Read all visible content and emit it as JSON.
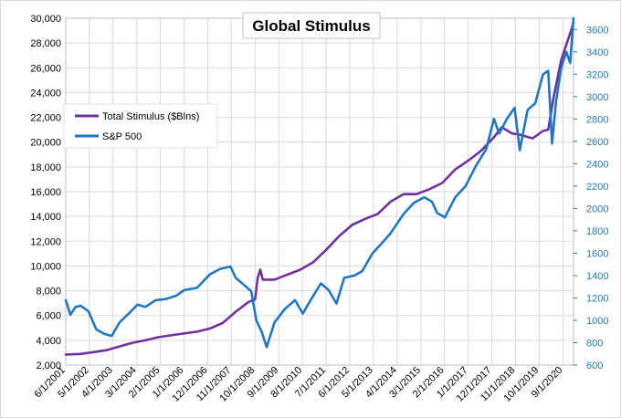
{
  "chart_data": {
    "type": "line",
    "title": "Global Stimulus",
    "xlabel": "",
    "ylabel": "",
    "x_tick_labels": [
      "6/1/2001",
      "5/1/2002",
      "4/1/2003",
      "3/1/2004",
      "2/1/2005",
      "1/1/2006",
      "12/1/2006",
      "11/1/2007",
      "10/1/2008",
      "9/1/2009",
      "8/1/2010",
      "7/1/2011",
      "6/1/2012",
      "5/1/2013",
      "4/1/2014",
      "3/1/2015",
      "2/1/2016",
      "1/1/2017",
      "12/1/2017",
      "11/1/2018",
      "10/1/2019",
      "9/1/2020"
    ],
    "x_tick_years": [
      2001.42,
      2002.33,
      2003.25,
      2004.17,
      2005.08,
      2006.0,
      2006.92,
      2007.83,
      2008.75,
      2009.67,
      2010.58,
      2011.5,
      2012.42,
      2013.33,
      2014.25,
      2015.17,
      2016.08,
      2017.0,
      2017.92,
      2018.83,
      2019.75,
      2020.67
    ],
    "x_range": [
      2001.42,
      2021.08
    ],
    "y_left": {
      "range": [
        2000,
        30000
      ],
      "ticks": [
        2000,
        4000,
        6000,
        8000,
        10000,
        12000,
        14000,
        16000,
        18000,
        20000,
        22000,
        24000,
        26000,
        28000,
        30000
      ],
      "tick_labels": [
        "2,000",
        "4,000",
        "6,000",
        "8,000",
        "10,000",
        "12,000",
        "14,000",
        "16,000",
        "18,000",
        "20,000",
        "22,000",
        "24,000",
        "26,000",
        "28,000",
        "30,000"
      ]
    },
    "y_right": {
      "range": [
        600,
        3700
      ],
      "ticks": [
        600,
        800,
        1000,
        1200,
        1400,
        1600,
        1800,
        2000,
        2200,
        2400,
        2600,
        2800,
        3000,
        3200,
        3400,
        3600
      ],
      "tick_labels": [
        "600",
        "800",
        "1000",
        "1200",
        "1400",
        "1600",
        "1800",
        "2000",
        "2200",
        "2400",
        "2600",
        "2800",
        "3000",
        "3200",
        "3400",
        "3600"
      ]
    },
    "grid": true,
    "legend_position": "top-left",
    "series": [
      {
        "name": "Total Stimulus ($Blns)",
        "axis": "left",
        "color": "#7030A0",
        "points": [
          [
            2001.42,
            2850
          ],
          [
            2002.0,
            2900
          ],
          [
            2002.5,
            3050
          ],
          [
            2003.0,
            3200
          ],
          [
            2003.5,
            3500
          ],
          [
            2004.0,
            3800
          ],
          [
            2004.5,
            4000
          ],
          [
            2005.0,
            4250
          ],
          [
            2005.5,
            4400
          ],
          [
            2006.0,
            4550
          ],
          [
            2006.5,
            4700
          ],
          [
            2007.0,
            4950
          ],
          [
            2007.5,
            5400
          ],
          [
            2008.0,
            6300
          ],
          [
            2008.5,
            7100
          ],
          [
            2008.75,
            7300
          ],
          [
            2008.85,
            9000
          ],
          [
            2008.95,
            9700
          ],
          [
            2009.05,
            8900
          ],
          [
            2009.5,
            8900
          ],
          [
            2010.0,
            9300
          ],
          [
            2010.5,
            9700
          ],
          [
            2011.0,
            10300
          ],
          [
            2011.5,
            11300
          ],
          [
            2012.0,
            12400
          ],
          [
            2012.5,
            13300
          ],
          [
            2013.0,
            13800
          ],
          [
            2013.5,
            14200
          ],
          [
            2014.0,
            15200
          ],
          [
            2014.5,
            15800
          ],
          [
            2015.0,
            15800
          ],
          [
            2015.5,
            16200
          ],
          [
            2016.0,
            16700
          ],
          [
            2016.5,
            17800
          ],
          [
            2017.0,
            18500
          ],
          [
            2017.5,
            19300
          ],
          [
            2018.0,
            20400
          ],
          [
            2018.3,
            21200
          ],
          [
            2018.7,
            20700
          ],
          [
            2019.0,
            20600
          ],
          [
            2019.5,
            20300
          ],
          [
            2019.9,
            20900
          ],
          [
            2020.1,
            21000
          ],
          [
            2020.3,
            23500
          ],
          [
            2020.6,
            26600
          ],
          [
            2021.08,
            29600
          ]
        ]
      },
      {
        "name": "S&P 500",
        "axis": "right",
        "color": "#1F77C4",
        "points": [
          [
            2001.42,
            1180
          ],
          [
            2001.6,
            1050
          ],
          [
            2001.8,
            1120
          ],
          [
            2002.0,
            1130
          ],
          [
            2002.3,
            1080
          ],
          [
            2002.6,
            920
          ],
          [
            2002.9,
            880
          ],
          [
            2003.2,
            860
          ],
          [
            2003.5,
            980
          ],
          [
            2003.9,
            1070
          ],
          [
            2004.2,
            1140
          ],
          [
            2004.5,
            1120
          ],
          [
            2004.9,
            1180
          ],
          [
            2005.3,
            1190
          ],
          [
            2005.7,
            1220
          ],
          [
            2006.0,
            1270
          ],
          [
            2006.5,
            1290
          ],
          [
            2007.0,
            1410
          ],
          [
            2007.4,
            1460
          ],
          [
            2007.8,
            1480
          ],
          [
            2008.0,
            1380
          ],
          [
            2008.3,
            1320
          ],
          [
            2008.6,
            1260
          ],
          [
            2008.8,
            1000
          ],
          [
            2009.0,
            900
          ],
          [
            2009.2,
            760
          ],
          [
            2009.5,
            980
          ],
          [
            2009.9,
            1100
          ],
          [
            2010.3,
            1180
          ],
          [
            2010.6,
            1060
          ],
          [
            2010.9,
            1180
          ],
          [
            2011.3,
            1330
          ],
          [
            2011.6,
            1270
          ],
          [
            2011.9,
            1150
          ],
          [
            2012.2,
            1380
          ],
          [
            2012.6,
            1400
          ],
          [
            2012.9,
            1440
          ],
          [
            2013.3,
            1600
          ],
          [
            2013.7,
            1700
          ],
          [
            2014.0,
            1780
          ],
          [
            2014.5,
            1950
          ],
          [
            2014.9,
            2050
          ],
          [
            2015.3,
            2100
          ],
          [
            2015.6,
            2060
          ],
          [
            2015.8,
            1960
          ],
          [
            2016.1,
            1920
          ],
          [
            2016.5,
            2100
          ],
          [
            2016.9,
            2200
          ],
          [
            2017.3,
            2380
          ],
          [
            2017.7,
            2530
          ],
          [
            2018.0,
            2800
          ],
          [
            2018.2,
            2670
          ],
          [
            2018.5,
            2800
          ],
          [
            2018.8,
            2900
          ],
          [
            2019.0,
            2520
          ],
          [
            2019.3,
            2880
          ],
          [
            2019.6,
            2940
          ],
          [
            2019.9,
            3200
          ],
          [
            2020.1,
            3230
          ],
          [
            2020.25,
            2580
          ],
          [
            2020.4,
            2950
          ],
          [
            2020.6,
            3250
          ],
          [
            2020.8,
            3400
          ],
          [
            2020.95,
            3300
          ],
          [
            2021.08,
            3700
          ]
        ]
      }
    ]
  }
}
